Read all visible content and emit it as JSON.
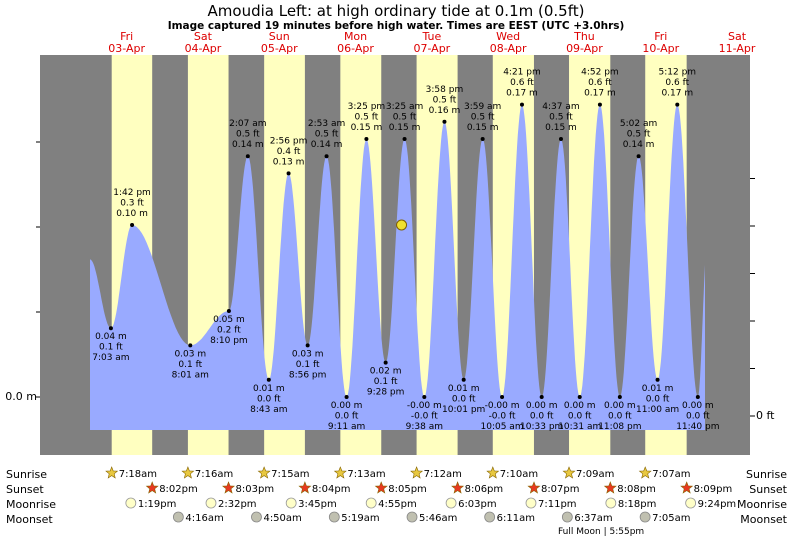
{
  "title": "Amoudia Left: at high  ordinary tide at 0.1m (0.5ft)",
  "subtitle": "Image captured 19 minutes before high water. Times are EEST (UTC +3.0hrs)",
  "colors": {
    "night": "#808080",
    "day": "#ffffc0",
    "tide": "#99aaff",
    "day_label": "#dd0000",
    "sun_marker": "#e8c840",
    "sunset_marker": "#e83820",
    "moonrise_marker": "#ffffc8",
    "moonset_marker": "#c0c0b0"
  },
  "days": [
    {
      "name": "Fri",
      "date": "03-Apr"
    },
    {
      "name": "Sat",
      "date": "04-Apr"
    },
    {
      "name": "Sun",
      "date": "05-Apr"
    },
    {
      "name": "Mon",
      "date": "06-Apr"
    },
    {
      "name": "Tue",
      "date": "07-Apr"
    },
    {
      "name": "Wed",
      "date": "08-Apr"
    },
    {
      "name": "Thu",
      "date": "09-Apr"
    },
    {
      "name": "Fri",
      "date": "10-Apr"
    },
    {
      "name": "Sat",
      "date": "11-Apr"
    }
  ],
  "axis": {
    "left_label": "0.0 m",
    "right_label": "0 ft"
  },
  "row_labels": {
    "sunrise": "Sunrise",
    "sunset": "Sunset",
    "moonrise": "Moonrise",
    "moonset": "Moonset"
  },
  "sunrise_times": [
    "7:18am",
    "7:16am",
    "7:15am",
    "7:13am",
    "7:12am",
    "7:10am",
    "7:09am",
    "7:07am"
  ],
  "sunset_times": [
    "8:02pm",
    "8:03pm",
    "8:04pm",
    "8:05pm",
    "8:06pm",
    "8:07pm",
    "8:08pm",
    "8:09pm"
  ],
  "moonrise_times": [
    "1:19pm",
    "2:32pm",
    "3:45pm",
    "4:55pm",
    "6:03pm",
    "7:11pm",
    "8:18pm",
    "9:24pm"
  ],
  "moonset_times": [
    "4:16am",
    "4:50am",
    "5:19am",
    "5:46am",
    "6:11am",
    "6:37am",
    "7:05am"
  ],
  "moon_phase_note": "Full Moon | 5:55pm",
  "chart_data": {
    "type": "area",
    "xlabel": "",
    "ylabel": "",
    "ylim": [
      0,
      0.22
    ],
    "grid": false,
    "current_tide_height_m": 0.1,
    "tide_extremes": [
      {
        "time": "7:03 am",
        "day": "03-Apr",
        "type": "low",
        "m": "0.04 m",
        "ft": "0.1 ft",
        "height_m": 0.04
      },
      {
        "time": "1:42 pm",
        "day": "03-Apr",
        "type": "high",
        "m": "0.10 m",
        "ft": "0.3 ft",
        "height_m": 0.1
      },
      {
        "time": "8:01 am",
        "day": "04-Apr",
        "type": "low",
        "m": "0.03 m",
        "ft": "0.1 ft",
        "height_m": 0.03
      },
      {
        "time": "8:10 pm",
        "day": "04-Apr",
        "type": "low",
        "m": "0.05 m",
        "ft": "0.2 ft",
        "height_m": 0.05
      },
      {
        "time": "2:07 am",
        "day": "05-Apr",
        "type": "high",
        "m": "0.14 m",
        "ft": "0.5 ft",
        "height_m": 0.14
      },
      {
        "time": "8:43 am",
        "day": "05-Apr",
        "type": "low",
        "m": "0.01 m",
        "ft": "0.0 ft",
        "height_m": 0.01
      },
      {
        "time": "2:56 pm",
        "day": "05-Apr",
        "type": "high",
        "m": "0.13 m",
        "ft": "0.4 ft",
        "height_m": 0.13
      },
      {
        "time": "8:56 pm",
        "day": "05-Apr",
        "type": "low",
        "m": "0.03 m",
        "ft": "0.1 ft",
        "height_m": 0.03
      },
      {
        "time": "2:53 am",
        "day": "06-Apr",
        "type": "high",
        "m": "0.14 m",
        "ft": "0.5 ft",
        "height_m": 0.14
      },
      {
        "time": "9:11 am",
        "day": "06-Apr",
        "type": "low",
        "m": "0.00 m",
        "ft": "0.0 ft",
        "height_m": 0.0
      },
      {
        "time": "3:25 pm",
        "day": "06-Apr",
        "type": "high",
        "m": "0.15 m",
        "ft": "0.5 ft",
        "height_m": 0.15
      },
      {
        "time": "9:28 pm",
        "day": "06-Apr",
        "type": "low",
        "m": "0.02 m",
        "ft": "0.1 ft",
        "height_m": 0.02
      },
      {
        "time": "3:25 am",
        "day": "07-Apr",
        "type": "high",
        "m": "0.15 m",
        "ft": "0.5 ft",
        "height_m": 0.15
      },
      {
        "time": "9:38 am",
        "day": "07-Apr",
        "type": "low",
        "m": "-0.00 m",
        "ft": "-0.0 ft",
        "height_m": 0.0
      },
      {
        "time": "3:58 pm",
        "day": "07-Apr",
        "type": "high",
        "m": "0.16 m",
        "ft": "0.5 ft",
        "height_m": 0.16
      },
      {
        "time": "10:01 pm",
        "day": "07-Apr",
        "type": "low",
        "m": "0.01 m",
        "ft": "0.0 ft",
        "height_m": 0.01
      },
      {
        "time": "3:59 am",
        "day": "08-Apr",
        "type": "high",
        "m": "0.15 m",
        "ft": "0.5 ft",
        "height_m": 0.15
      },
      {
        "time": "10:05 am",
        "day": "08-Apr",
        "type": "low",
        "m": "-0.00 m",
        "ft": "-0.0 ft",
        "height_m": 0.0
      },
      {
        "time": "4:21 pm",
        "day": "08-Apr",
        "type": "high",
        "m": "0.17 m",
        "ft": "0.6 ft",
        "height_m": 0.17
      },
      {
        "time": "10:33 pm",
        "day": "08-Apr",
        "type": "low",
        "m": "0.00 m",
        "ft": "0.0 ft",
        "height_m": 0.0
      },
      {
        "time": "4:37 am",
        "day": "09-Apr",
        "type": "high",
        "m": "0.15 m",
        "ft": "0.5 ft",
        "height_m": 0.15
      },
      {
        "time": "10:31 am",
        "day": "09-Apr",
        "type": "low",
        "m": "0.00 m",
        "ft": "0.0 ft",
        "height_m": 0.0
      },
      {
        "time": "4:52 pm",
        "day": "09-Apr",
        "type": "high",
        "m": "0.17 m",
        "ft": "0.6 ft",
        "height_m": 0.17
      },
      {
        "time": "11:08 pm",
        "day": "09-Apr",
        "type": "low",
        "m": "0.00 m",
        "ft": "0.0 ft",
        "height_m": 0.0
      },
      {
        "time": "5:02 am",
        "day": "10-Apr",
        "type": "high",
        "m": "0.14 m",
        "ft": "0.5 ft",
        "height_m": 0.14
      },
      {
        "time": "11:00 am",
        "day": "10-Apr",
        "type": "low",
        "m": "0.01 m",
        "ft": "0.0 ft",
        "height_m": 0.01
      },
      {
        "time": "5:12 pm",
        "day": "10-Apr",
        "type": "high",
        "m": "0.17 m",
        "ft": "0.6 ft",
        "height_m": 0.17
      },
      {
        "time": "11:40 pm",
        "day": "10-Apr",
        "type": "low",
        "m": "0.00 m",
        "ft": "0.0 ft",
        "height_m": 0.0
      }
    ]
  }
}
